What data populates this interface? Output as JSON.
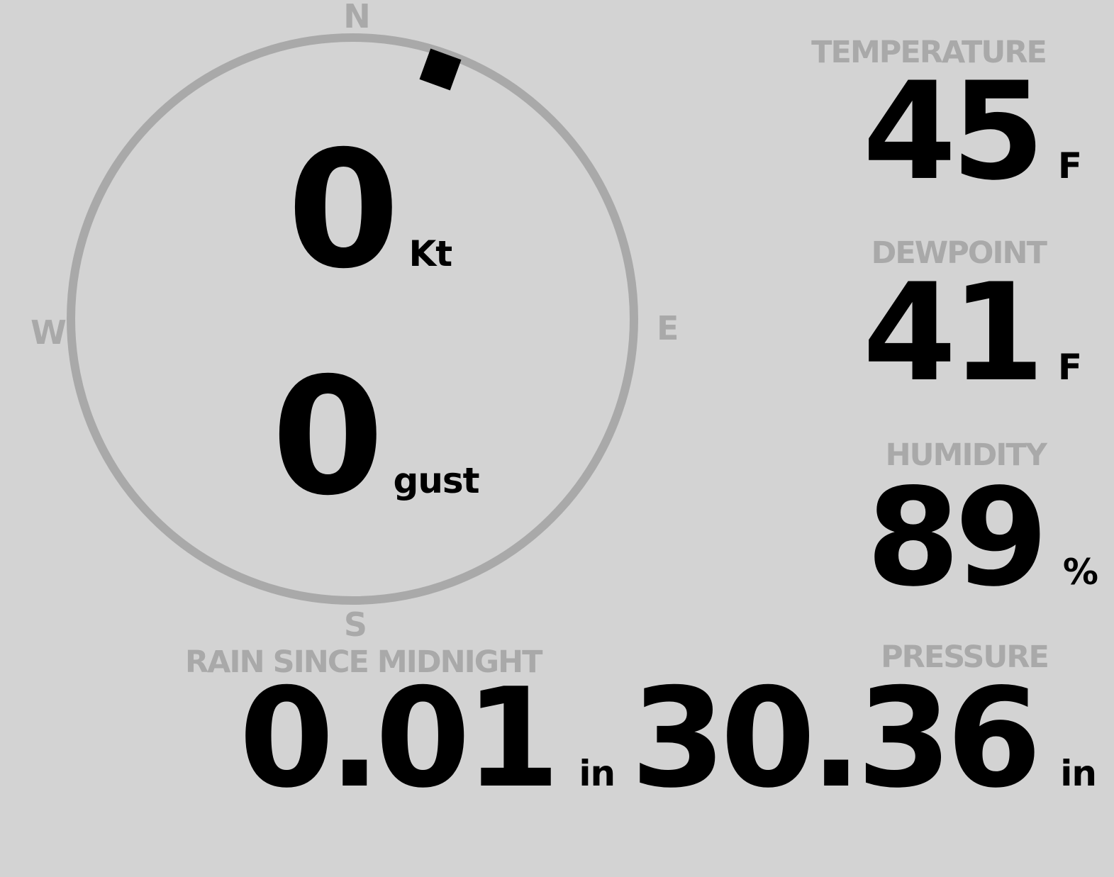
{
  "colors": {
    "background": "#d3d3d3",
    "muted_gray": "#a9a9a9",
    "value_black": "#000000"
  },
  "compass": {
    "cardinal_labels": {
      "north": "N",
      "east": "E",
      "south": "S",
      "west": "W"
    },
    "wind_direction_deg": 20,
    "speed": {
      "value": "0",
      "unit": "Kt"
    },
    "gust": {
      "value": "0",
      "unit": "gust"
    }
  },
  "readings": {
    "temperature": {
      "label": "TEMPERATURE",
      "value": "45",
      "unit": "F"
    },
    "dewpoint": {
      "label": "DEWPOINT",
      "value": "41",
      "unit": "F"
    },
    "humidity": {
      "label": "HUMIDITY",
      "value": "89",
      "unit": "%"
    },
    "rain_since_midnight": {
      "label": "RAIN SINCE MIDNIGHT",
      "value": "0.01",
      "unit": "in"
    },
    "pressure": {
      "label": "PRESSURE",
      "value": "30.36",
      "unit": "in"
    }
  }
}
